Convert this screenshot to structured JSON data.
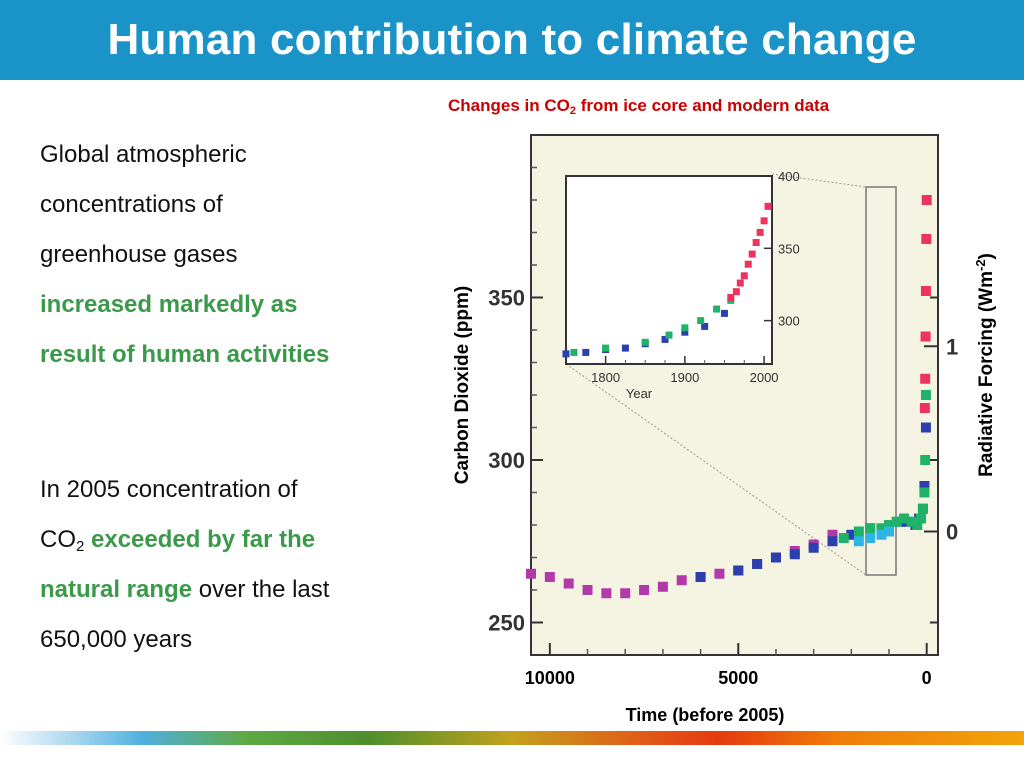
{
  "slide_title": "Human contribution to climate change",
  "left_text": {
    "p1_line1": "Global atmospheric",
    "p1_line2": "concentrations of",
    "p1_line3": "greenhouse gases",
    "p1_highlight1": "increased markedly as",
    "p1_highlight2": "result of human activities",
    "p2_line1": "In 2005 concentration of",
    "p2_co": "CO",
    "p2_sub": "2",
    "p2_highlight1": "exceeded by far the",
    "p2_highlight2": "natural range",
    "p2_tail1": " over the last",
    "p2_tail2": "650,000 years"
  },
  "chart_title": {
    "prefix": "Changes in CO",
    "sub": "2",
    "suffix": " from ice core and modern data"
  },
  "colors": {
    "title_bar": "#1a94c8",
    "highlight_green": "#3a9a4a",
    "chart_title_red": "#cc0000",
    "series_magenta": "#b23aa8",
    "series_blue": "#2c3fae",
    "series_green": "#1fb36a",
    "series_cyan": "#2fb4e6",
    "series_red": "#ef3360",
    "plot_bg": "#f5f3e2"
  },
  "chart_data": [
    {
      "type": "scatter",
      "title": "Changes in CO2 from ice core and modern data",
      "xlabel": "Time (before 2005)",
      "ylabel": "Carbon Dioxide (ppm)",
      "ylabel_right_prefix": "Radiative Forcing (Wm",
      "ylabel_right_sup": "-2",
      "ylabel_right_suffix": ")",
      "xlim": [
        10500,
        -300
      ],
      "ylim": [
        240,
        400
      ],
      "xticks": [
        10000,
        5000,
        0
      ],
      "xtick_labels": [
        "10000",
        "5000",
        "0"
      ],
      "yticks": [
        250,
        300,
        350
      ],
      "ytick_labels": [
        "250",
        "300",
        "350"
      ],
      "right_ticks": [
        {
          "ppm": 278,
          "label": "0"
        },
        {
          "ppm": 335,
          "label": "1"
        }
      ],
      "series": [
        {
          "color_key": "series_magenta",
          "x": [
            10500,
            10000,
            9500,
            9000,
            8500,
            8000,
            7500,
            7000,
            6500,
            6000,
            5500,
            5000,
            4500,
            4000,
            3500,
            3000,
            2500
          ],
          "y": [
            265,
            264,
            262,
            260,
            259,
            259,
            260,
            261,
            263,
            264,
            265,
            266,
            268,
            270,
            272,
            274,
            277
          ]
        },
        {
          "color_key": "series_blue",
          "x": [
            6000,
            5000,
            4500,
            4000,
            3500,
            3000,
            2500,
            2000,
            1500,
            1000,
            700,
            500,
            300,
            200,
            100,
            60,
            20
          ],
          "y": [
            264,
            266,
            268,
            270,
            271,
            273,
            275,
            277,
            279,
            280,
            281,
            281,
            280,
            282,
            285,
            292,
            310
          ]
        },
        {
          "color_key": "series_green",
          "x": [
            2200,
            1800,
            1500,
            1200,
            1000,
            800,
            600,
            400,
            250,
            150,
            100,
            60,
            40,
            20
          ],
          "y": [
            276,
            278,
            279,
            279,
            280,
            281,
            282,
            281,
            280,
            282,
            285,
            290,
            300,
            320
          ]
        },
        {
          "color_key": "series_cyan",
          "x": [
            1800,
            1500,
            1200,
            1000
          ],
          "y": [
            275,
            276,
            277,
            278
          ]
        },
        {
          "color_key": "series_red",
          "x": [
            47,
            40,
            30,
            20,
            10,
            0
          ],
          "y": [
            316,
            325,
            338,
            352,
            368,
            380
          ]
        }
      ],
      "inset": {
        "type": "scatter",
        "xlabel": "Year",
        "xlim": [
          1750,
          2010
        ],
        "ylim": [
          270,
          400
        ],
        "xticks": [
          1800,
          1900,
          2000
        ],
        "xtick_labels": [
          "1800",
          "1900",
          "2000"
        ],
        "yticks": [
          300,
          350,
          400
        ],
        "ytick_labels": [
          "300",
          "350",
          "400"
        ],
        "series": [
          {
            "color_key": "series_blue",
            "x": [
              1750,
              1775,
              1800,
              1825,
              1850,
              1875,
              1900,
              1925,
              1950
            ],
            "y": [
              277,
              278,
              280,
              281,
              284,
              287,
              292,
              296,
              305
            ]
          },
          {
            "color_key": "series_green",
            "x": [
              1760,
              1800,
              1850,
              1880,
              1900,
              1920,
              1940,
              1958
            ],
            "y": [
              278,
              281,
              285,
              290,
              295,
              300,
              308,
              314
            ]
          },
          {
            "color_key": "series_red",
            "x": [
              1958,
              1965,
              1970,
              1975,
              1980,
              1985,
              1990,
              1995,
              2000,
              2005
            ],
            "y": [
              316,
              320,
              326,
              331,
              339,
              346,
              354,
              361,
              369,
              379
            ]
          }
        ]
      }
    }
  ]
}
